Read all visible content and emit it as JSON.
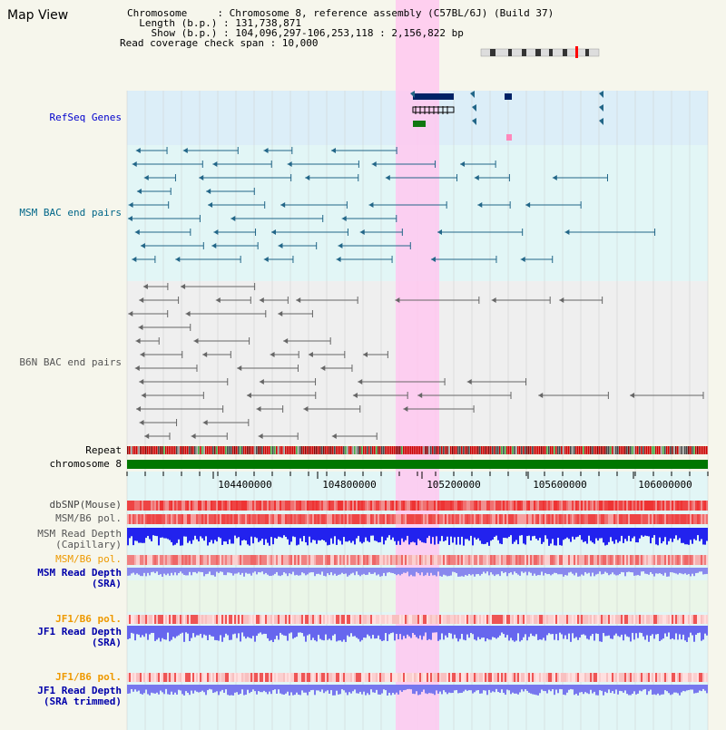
{
  "title": "Map View",
  "info": {
    "chromosome": "Chromosome     : Chromosome 8, reference assembly (C57BL/6J) (Build 37)",
    "length": "  Length (b.p.) : 131,738,871",
    "show": "    Show (b.p.) : 104,096,297-106,253,118 : 2,156,822 bp",
    "coverage": "Read coverage check span : 10,000"
  },
  "tracks": {
    "refseq": "RefSeq Genes",
    "msm_bac": "MSM BAC end pairs",
    "b6n_bac": "B6N BAC end pairs",
    "repeat": "Repeat",
    "chromosome": "chromosome 8",
    "dbsnp": "dbSNP(Mouse)",
    "msm_b6_pol_1": "MSM/B6 pol.",
    "msm_depth_cap_1": "MSM Read Depth",
    "msm_depth_cap_2": "(Capillary)",
    "msm_b6_pol_2": "MSM/B6 pol.",
    "msm_depth_sra_1": "MSM Read Depth",
    "msm_depth_sra_2": "(SRA)",
    "jf1_b6_pol_1": "JF1/B6 pol.",
    "jf1_depth_sra_1": "JF1 Read Depth",
    "jf1_depth_sra_2": "(SRA)",
    "jf1_b6_pol_2": "JF1/B6 pol.",
    "jf1_depth_trim_1": "JF1 Read Depth",
    "jf1_depth_trim_2": "(SRA trimmed)"
  },
  "axis": {
    "ticks": [
      "104400000",
      "104800000",
      "105200000",
      "105600000",
      "106000000"
    ]
  },
  "colors": {
    "refseq_label": "#0000cc",
    "msm_label": "#006688",
    "b6n_label": "#555555",
    "pol_label": "#ee9900",
    "depth_label": "#0000aa",
    "highlight": "#ffc8f0",
    "chrom_bar": "#007700"
  }
}
